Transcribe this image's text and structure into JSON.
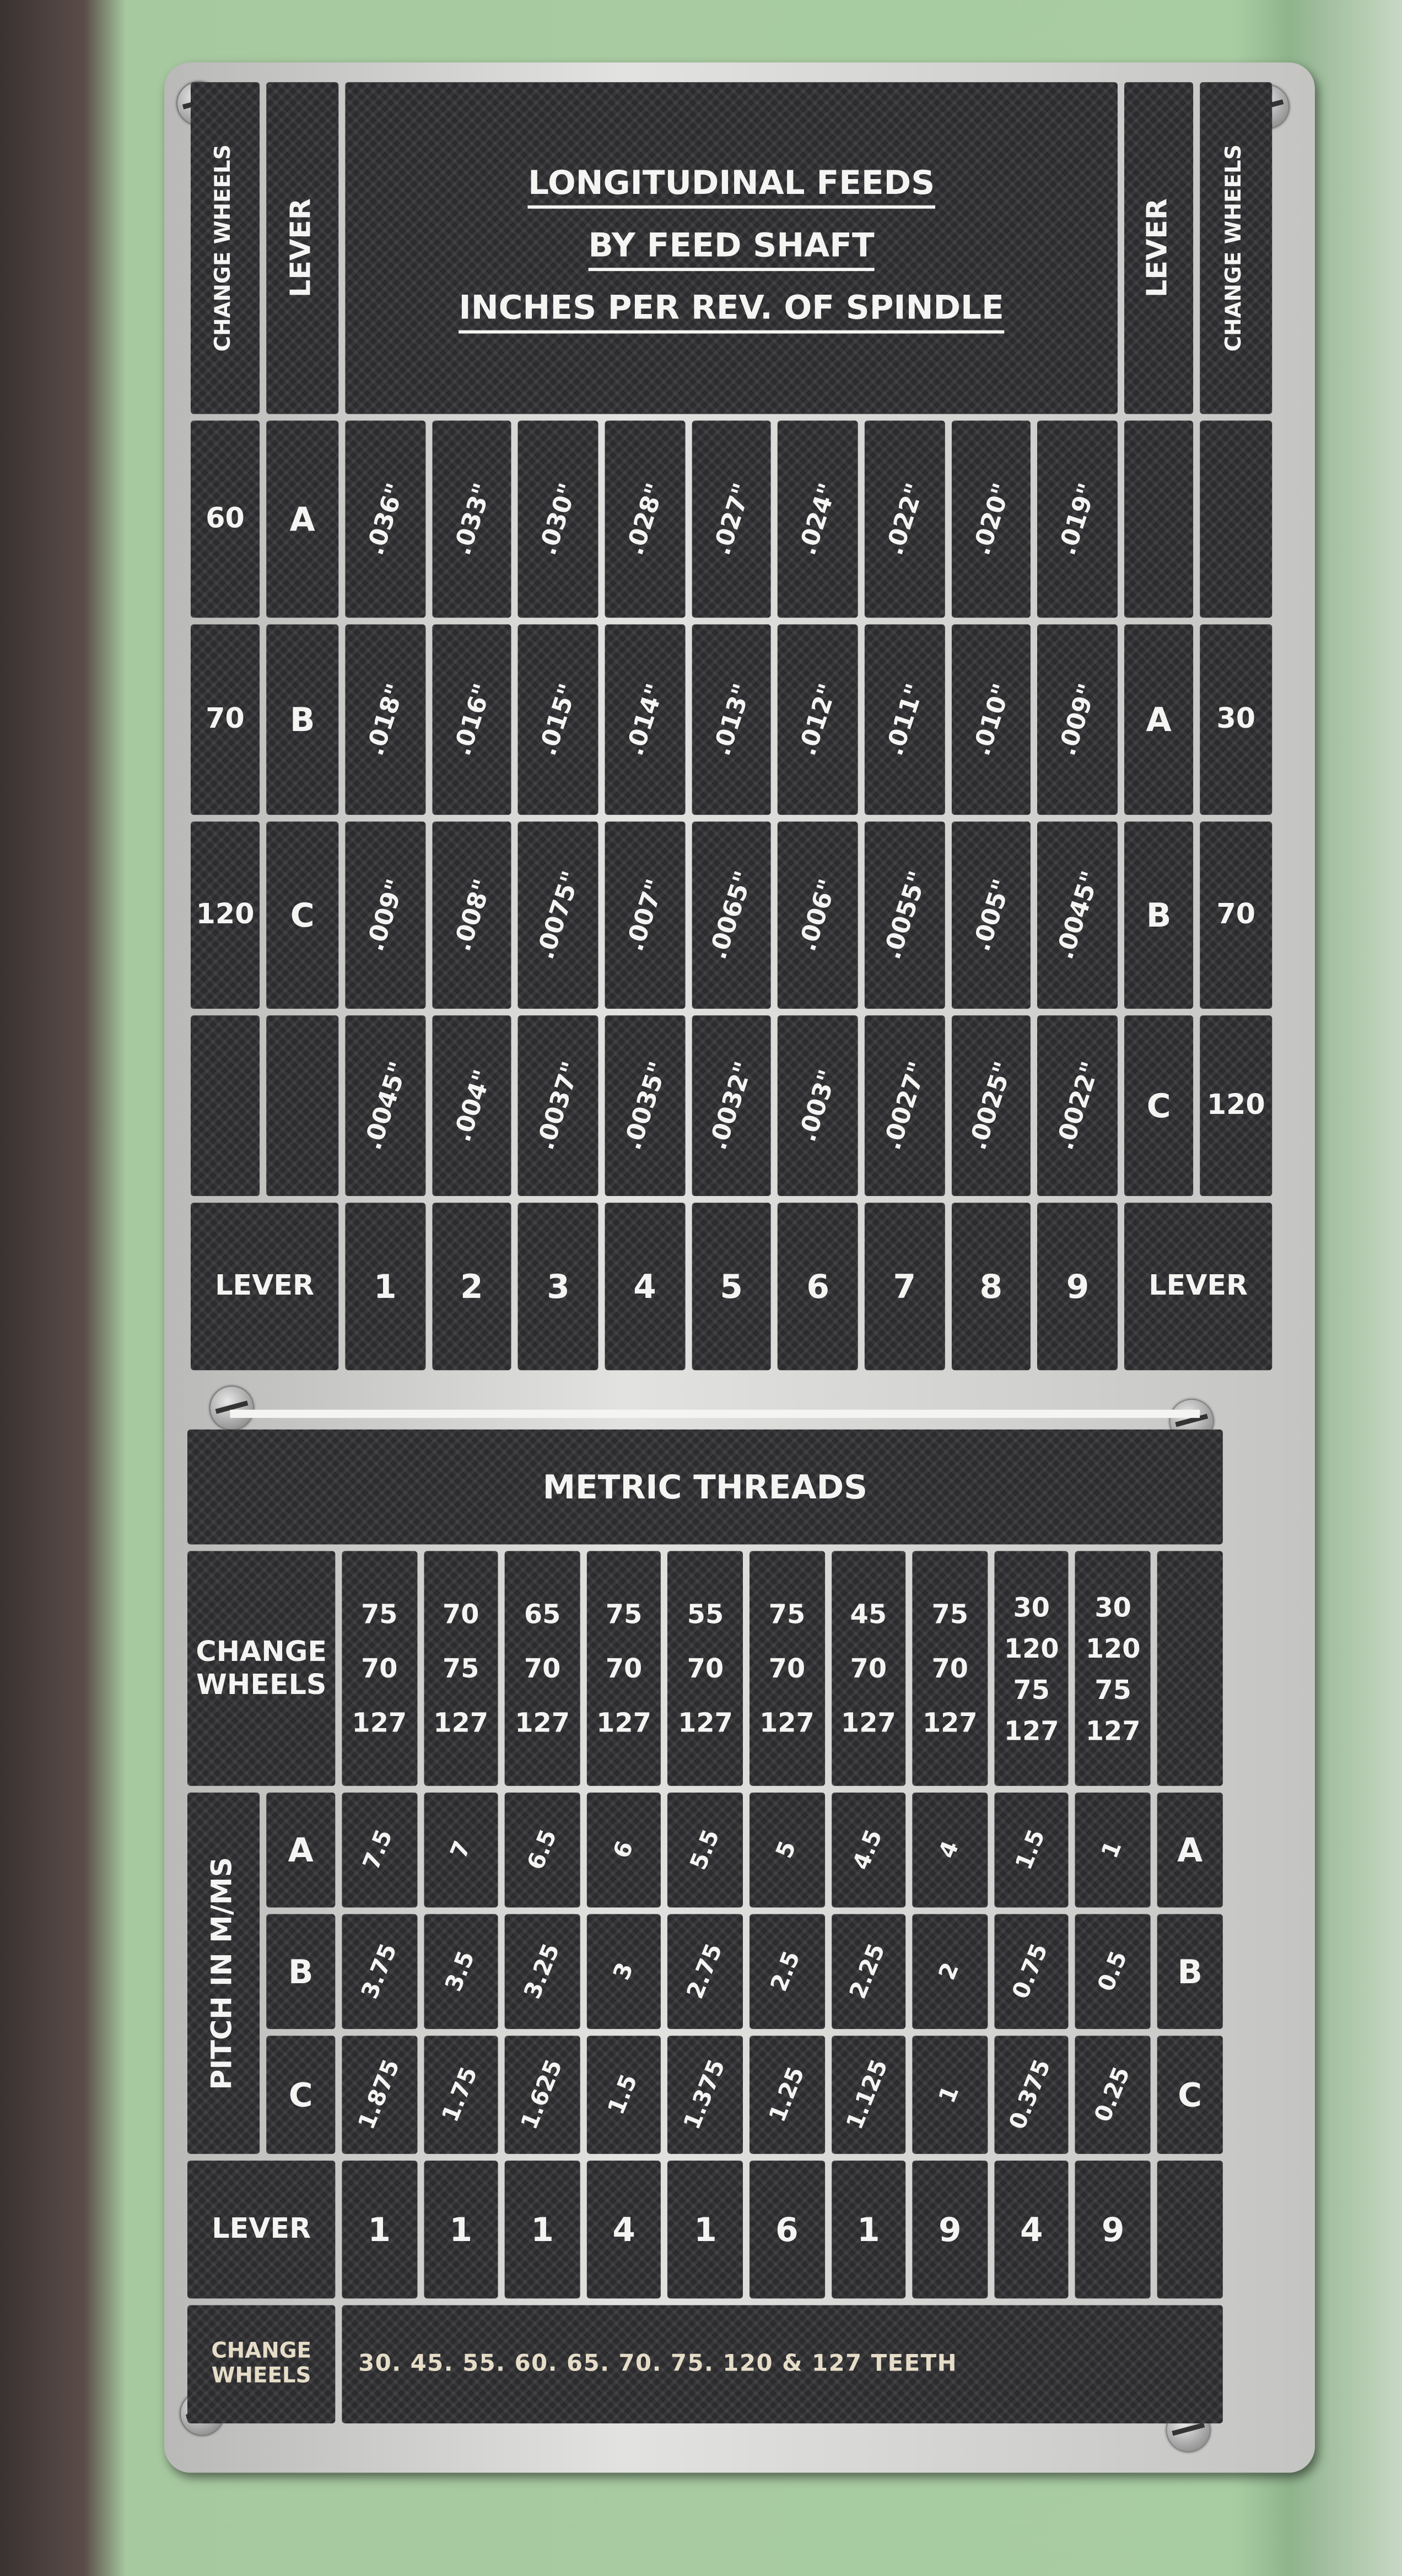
{
  "colors": {
    "machine_green": "#a9cda3",
    "plate_silver": "#d4d4d2",
    "panel_black": "#2b2b2e",
    "lettering": "#f4f4f2"
  },
  "feeds": {
    "title_lines": [
      "LONGITUDINAL FEEDS",
      "BY FEED SHAFT",
      "INCHES PER REV. OF SPINDLE"
    ],
    "change_wheels_label": "CHANGE WHEELS",
    "lever_label": "LEVER",
    "rows": [
      {
        "wheels": "60",
        "letter": "A",
        "values": [
          ".036\"",
          ".033\"",
          ".030\"",
          ".028\"",
          ".027\"",
          ".024\"",
          ".022\"",
          ".020\"",
          ".019\""
        ],
        "right_letter": "",
        "right_wheels": ""
      },
      {
        "wheels": "70",
        "letter": "B",
        "values": [
          ".018\"",
          ".016\"",
          ".015\"",
          ".014\"",
          ".013\"",
          ".012\"",
          ".011\"",
          ".010\"",
          ".009\""
        ],
        "right_letter": "A",
        "right_wheels": "30"
      },
      {
        "wheels": "120",
        "letter": "C",
        "values": [
          ".009\"",
          ".008\"",
          ".0075\"",
          ".007\"",
          ".0065\"",
          ".006\"",
          ".0055\"",
          ".005\"",
          ".0045\""
        ],
        "right_letter": "B",
        "right_wheels": "70"
      },
      {
        "wheels": "",
        "letter": "",
        "values": [
          ".0045\"",
          ".004\"",
          ".0037\"",
          ".0035\"",
          ".0032\"",
          ".003\"",
          ".0027\"",
          ".0025\"",
          ".0022\""
        ],
        "right_letter": "C",
        "right_wheels": "120"
      }
    ],
    "levers": [
      "1",
      "2",
      "3",
      "4",
      "5",
      "6",
      "7",
      "8",
      "9"
    ]
  },
  "metric": {
    "title": "METRIC THREADS",
    "change_wheels_label": "CHANGE WHEELS",
    "wheels": [
      [
        "75",
        "70",
        "127"
      ],
      [
        "70",
        "75",
        "127"
      ],
      [
        "65",
        "70",
        "127"
      ],
      [
        "75",
        "70",
        "127"
      ],
      [
        "55",
        "70",
        "127"
      ],
      [
        "75",
        "70",
        "127"
      ],
      [
        "45",
        "70",
        "127"
      ],
      [
        "75",
        "70",
        "127"
      ],
      [
        "30",
        "120",
        "75",
        "127"
      ],
      [
        "30",
        "120",
        "75",
        "127"
      ]
    ],
    "pitch_label": "PITCH IN M/MS",
    "rows": [
      {
        "letter": "A",
        "values": [
          "7.5",
          "7",
          "6.5",
          "6",
          "5.5",
          "5",
          "4.5",
          "4",
          "1.5",
          "1"
        ]
      },
      {
        "letter": "B",
        "values": [
          "3.75",
          "3.5",
          "3.25",
          "3",
          "2.75",
          "2.5",
          "2.25",
          "2",
          "0.75",
          "0.5"
        ]
      },
      {
        "letter": "C",
        "values": [
          "1.875",
          "1.75",
          "1.625",
          "1.5",
          "1.375",
          "1.25",
          "1.125",
          "1",
          "0.375",
          "0.25"
        ]
      }
    ],
    "lever_label": "LEVER",
    "levers": [
      "1",
      "1",
      "1",
      "4",
      "1",
      "6",
      "1",
      "9",
      "4",
      "9"
    ],
    "footer_label": "CHANGE WHEELS",
    "footer_text": "30. 45. 55. 60. 65. 70. 75. 120 & 127 TEETH"
  }
}
